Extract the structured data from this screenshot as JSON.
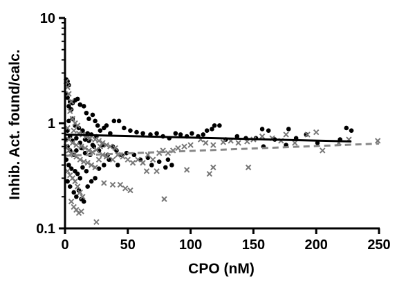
{
  "chart_data": {
    "type": "scatter",
    "xlabel": "CPO (nM)",
    "ylabel": "Inhib. Act. found/calc.",
    "xlim": [
      0,
      250
    ],
    "ylim": [
      0.1,
      10
    ],
    "yscale": "log",
    "x_ticks": [
      "0",
      "50",
      "100",
      "150",
      "200",
      "250"
    ],
    "y_ticks": [
      "0.1",
      "1",
      "10"
    ],
    "legend": "none",
    "grid": false,
    "series": [
      {
        "marker": "circle",
        "color": "#000000",
        "points": [
          [
            1,
            2.6
          ],
          [
            2,
            2.5
          ],
          [
            3,
            2.3
          ],
          [
            1,
            1.9
          ],
          [
            2,
            1.75
          ],
          [
            4,
            1.6
          ],
          [
            3,
            1.45
          ],
          [
            5,
            1.35
          ],
          [
            6,
            1.55
          ],
          [
            8,
            1.65
          ],
          [
            10,
            1.7
          ],
          [
            12,
            1.5
          ],
          [
            15,
            1.45
          ],
          [
            17,
            1.25
          ],
          [
            19,
            1.1
          ],
          [
            22,
            1.2
          ],
          [
            24,
            1.05
          ],
          [
            26,
            0.95
          ],
          [
            3,
            1.05
          ],
          [
            6,
            1.1
          ],
          [
            8,
            0.95
          ],
          [
            11,
            0.9
          ],
          [
            14,
            0.85
          ],
          [
            18,
            0.8
          ],
          [
            21,
            0.78
          ],
          [
            25,
            0.75
          ],
          [
            28,
            0.85
          ],
          [
            31,
            0.9
          ],
          [
            33,
            0.95
          ],
          [
            36,
            0.8
          ],
          [
            39,
            1.05
          ],
          [
            43,
            1.05
          ],
          [
            47,
            0.9
          ],
          [
            52,
            0.85
          ],
          [
            57,
            0.82
          ],
          [
            62,
            0.8
          ],
          [
            68,
            0.78
          ],
          [
            73,
            0.8
          ],
          [
            78,
            0.75
          ],
          [
            83,
            0.72
          ],
          [
            88,
            0.8
          ],
          [
            92,
            0.78
          ],
          [
            97,
            0.75
          ],
          [
            101,
            0.8
          ],
          [
            106,
            0.75
          ],
          [
            110,
            0.78
          ],
          [
            113,
            0.85
          ],
          [
            117,
            0.88
          ],
          [
            119,
            0.95
          ],
          [
            123,
            0.95
          ],
          [
            128,
            0.7
          ],
          [
            137,
            0.75
          ],
          [
            144,
            0.72
          ],
          [
            152,
            0.72
          ],
          [
            157,
            0.88
          ],
          [
            162,
            0.85
          ],
          [
            167,
            0.7
          ],
          [
            178,
            0.88
          ],
          [
            184,
            0.72
          ],
          [
            192,
            0.78
          ],
          [
            201,
            0.65
          ],
          [
            219,
            0.7
          ],
          [
            224,
            0.9
          ],
          [
            228,
            0.85
          ],
          [
            158,
            0.6
          ],
          [
            176,
            0.62
          ],
          [
            2,
            0.6
          ],
          [
            4,
            0.55
          ],
          [
            7,
            0.5
          ],
          [
            9,
            0.55
          ],
          [
            13,
            0.58
          ],
          [
            16,
            0.52
          ],
          [
            20,
            0.5
          ],
          [
            23,
            0.6
          ],
          [
            27,
            0.55
          ],
          [
            30,
            0.62
          ],
          [
            34,
            0.5
          ],
          [
            38,
            0.6
          ],
          [
            41,
            0.55
          ],
          [
            45,
            0.5
          ],
          [
            49,
            0.52
          ],
          [
            55,
            0.5
          ],
          [
            60,
            0.45
          ],
          [
            66,
            0.47
          ],
          [
            69,
            0.4
          ],
          [
            75,
            0.43
          ],
          [
            80,
            0.38
          ],
          [
            82,
            0.45
          ],
          [
            85,
            0.4
          ],
          [
            3,
            0.4
          ],
          [
            5,
            0.37
          ],
          [
            8,
            0.35
          ],
          [
            10,
            0.33
          ],
          [
            12,
            0.3
          ],
          [
            14,
            0.38
          ],
          [
            17,
            0.35
          ],
          [
            2,
            0.28
          ],
          [
            4,
            0.25
          ],
          [
            7,
            0.22
          ],
          [
            9,
            0.2
          ],
          [
            11,
            0.23
          ],
          [
            13,
            0.19
          ],
          [
            15,
            0.18
          ],
          [
            18,
            0.25
          ],
          [
            21,
            0.28
          ],
          [
            24,
            0.3
          ],
          [
            27,
            0.37
          ],
          [
            31,
            0.4
          ],
          [
            35,
            0.45
          ],
          [
            42,
            0.4
          ],
          [
            1,
            0.45
          ],
          [
            1,
            0.7
          ],
          [
            2,
            0.85
          ],
          [
            4,
            0.75
          ],
          [
            6,
            0.68
          ],
          [
            9,
            0.72
          ],
          [
            12,
            0.65
          ],
          [
            16,
            0.7
          ],
          [
            19,
            0.68
          ],
          [
            22,
            0.62
          ]
        ]
      },
      {
        "marker": "x",
        "color": "#777777",
        "points": [
          [
            1,
            2.5
          ],
          [
            2,
            2.2
          ],
          [
            3,
            1.9
          ],
          [
            5,
            1.6
          ],
          [
            4,
            1.3
          ],
          [
            6,
            1.1
          ],
          [
            8,
            1.0
          ],
          [
            10,
            0.95
          ],
          [
            2,
            0.9
          ],
          [
            7,
            0.85
          ],
          [
            11,
            0.8
          ],
          [
            14,
            0.78
          ],
          [
            17,
            0.75
          ],
          [
            20,
            0.72
          ],
          [
            24,
            0.7
          ],
          [
            27,
            0.68
          ],
          [
            30,
            0.65
          ],
          [
            33,
            0.62
          ],
          [
            36,
            0.6
          ],
          [
            40,
            0.58
          ],
          [
            1,
            0.6
          ],
          [
            3,
            0.55
          ],
          [
            5,
            0.52
          ],
          [
            7,
            0.5
          ],
          [
            9,
            0.48
          ],
          [
            12,
            0.45
          ],
          [
            15,
            0.43
          ],
          [
            18,
            0.42
          ],
          [
            21,
            0.4
          ],
          [
            24,
            0.38
          ],
          [
            27,
            0.45
          ],
          [
            30,
            0.5
          ],
          [
            33,
            0.48
          ],
          [
            38,
            0.45
          ],
          [
            42,
            0.5
          ],
          [
            46,
            0.48
          ],
          [
            50,
            0.45
          ],
          [
            54,
            0.42
          ],
          [
            58,
            0.45
          ],
          [
            62,
            0.42
          ],
          [
            66,
            0.5
          ],
          [
            70,
            0.45
          ],
          [
            75,
            0.52
          ],
          [
            78,
            0.55
          ],
          [
            82,
            0.52
          ],
          [
            86,
            0.55
          ],
          [
            90,
            0.58
          ],
          [
            95,
            0.6
          ],
          [
            100,
            0.62
          ],
          [
            108,
            0.7
          ],
          [
            112,
            0.65
          ],
          [
            118,
            0.62
          ],
          [
            126,
            0.66
          ],
          [
            132,
            0.68
          ],
          [
            138,
            0.65
          ],
          [
            145,
            0.67
          ],
          [
            150,
            0.7
          ],
          [
            157,
            0.75
          ],
          [
            165,
            0.72
          ],
          [
            172,
            0.68
          ],
          [
            176,
            0.78
          ],
          [
            183,
            0.65
          ],
          [
            193,
            0.78
          ],
          [
            200,
            0.82
          ],
          [
            205,
            0.55
          ],
          [
            218,
            0.65
          ],
          [
            226,
            0.7
          ],
          [
            249,
            0.68
          ],
          [
            2,
            0.35
          ],
          [
            4,
            0.32
          ],
          [
            6,
            0.3
          ],
          [
            8,
            0.28
          ],
          [
            10,
            0.25
          ],
          [
            12,
            0.22
          ],
          [
            14,
            0.2
          ],
          [
            5,
            0.18
          ],
          [
            7,
            0.16
          ],
          [
            9,
            0.15
          ],
          [
            11,
            0.14
          ],
          [
            13,
            0.145
          ],
          [
            25,
            0.115
          ],
          [
            31,
            0.27
          ],
          [
            38,
            0.26
          ],
          [
            44,
            0.26
          ],
          [
            48,
            0.24
          ],
          [
            52,
            0.23
          ],
          [
            65,
            0.35
          ],
          [
            73,
            0.35
          ],
          [
            79,
            0.19
          ],
          [
            97,
            0.36
          ],
          [
            115,
            0.33
          ],
          [
            118,
            0.38
          ],
          [
            146,
            0.38
          ],
          [
            3,
            0.7
          ],
          [
            6,
            0.65
          ],
          [
            9,
            0.62
          ],
          [
            13,
            0.6
          ],
          [
            16,
            0.58
          ],
          [
            19,
            0.55
          ],
          [
            22,
            0.53
          ],
          [
            25,
            0.56
          ],
          [
            28,
            0.6
          ]
        ]
      }
    ],
    "fits": [
      {
        "style": "solid",
        "color": "#000000",
        "x": [
          0,
          228
        ],
        "y": [
          0.78,
          0.67
        ]
      },
      {
        "style": "dashed",
        "color": "#888888",
        "x": [
          0,
          250
        ],
        "y": [
          0.49,
          0.64
        ]
      }
    ]
  }
}
